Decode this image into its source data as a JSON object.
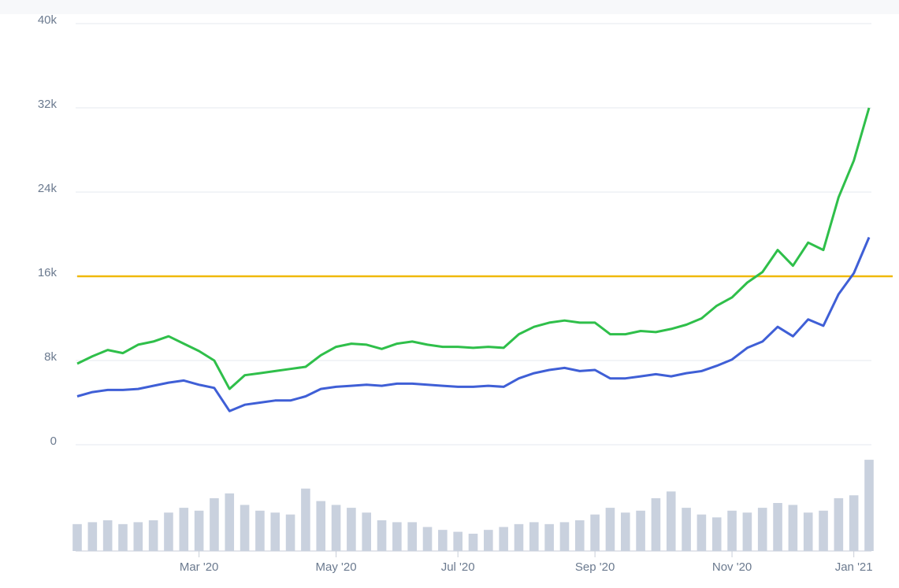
{
  "chart_data": {
    "type": "line",
    "categories": [
      null,
      null,
      null,
      null,
      null,
      null,
      null,
      null,
      "Mar '20",
      null,
      null,
      null,
      null,
      null,
      null,
      null,
      null,
      "May '20",
      null,
      null,
      null,
      null,
      null,
      null,
      null,
      "Jul '20",
      null,
      null,
      null,
      null,
      null,
      null,
      null,
      null,
      "Sep '20",
      null,
      null,
      null,
      null,
      null,
      null,
      null,
      null,
      "Nov '20",
      null,
      null,
      null,
      null,
      null,
      null,
      null,
      "Jan '21",
      null
    ],
    "series": [
      {
        "color": "#2fbf4a",
        "values": [
          7700,
          8400,
          9000,
          8700,
          9500,
          9800,
          10300,
          9600,
          8900,
          8000,
          5300,
          6600,
          6800,
          7000,
          7200,
          7400,
          8500,
          9300,
          9600,
          9500,
          9100,
          9600,
          9800,
          9500,
          9300,
          9300,
          9200,
          9300,
          9200,
          10500,
          11200,
          11600,
          11800,
          11600,
          11600,
          10500,
          10500,
          10800,
          10700,
          11000,
          11400,
          12000,
          13200,
          14000,
          15400,
          16400,
          18500,
          17000,
          19200,
          18500,
          23500,
          27000,
          32000
        ]
      },
      {
        "color": "#3f5fd6",
        "values": [
          4600,
          5000,
          5200,
          5200,
          5300,
          5600,
          5900,
          6100,
          5700,
          5400,
          3200,
          3800,
          4000,
          4200,
          4200,
          4600,
          5300,
          5500,
          5600,
          5700,
          5600,
          5800,
          5800,
          5700,
          5600,
          5500,
          5500,
          5600,
          5500,
          6300,
          6800,
          7100,
          7300,
          7000,
          7100,
          6300,
          6300,
          6500,
          6700,
          6500,
          6800,
          7000,
          7500,
          8100,
          9200,
          9800,
          11200,
          10300,
          11900,
          11300,
          14300,
          16300,
          19700
        ]
      }
    ],
    "reference_line": {
      "value": 16000,
      "color": "#f0b90b"
    },
    "volume": {
      "color": "#c9d1de",
      "ylim": [
        0,
        100
      ],
      "values": [
        28,
        30,
        32,
        28,
        30,
        32,
        40,
        45,
        42,
        55,
        60,
        48,
        42,
        40,
        38,
        65,
        52,
        48,
        45,
        40,
        32,
        30,
        30,
        25,
        22,
        20,
        18,
        22,
        25,
        28,
        30,
        28,
        30,
        32,
        38,
        45,
        40,
        42,
        55,
        62,
        45,
        38,
        35,
        42,
        40,
        45,
        50,
        48,
        40,
        42,
        55,
        58,
        95
      ]
    },
    "ylim": [
      0,
      40000
    ],
    "yticks": [
      0,
      {
        "value": 8000,
        "label": "8k"
      },
      {
        "value": 16000,
        "label": "16k"
      },
      {
        "value": 24000,
        "label": "24k"
      },
      {
        "value": 32000,
        "label": "32k"
      },
      {
        "value": 40000,
        "label": "40k"
      }
    ],
    "grid": true
  }
}
